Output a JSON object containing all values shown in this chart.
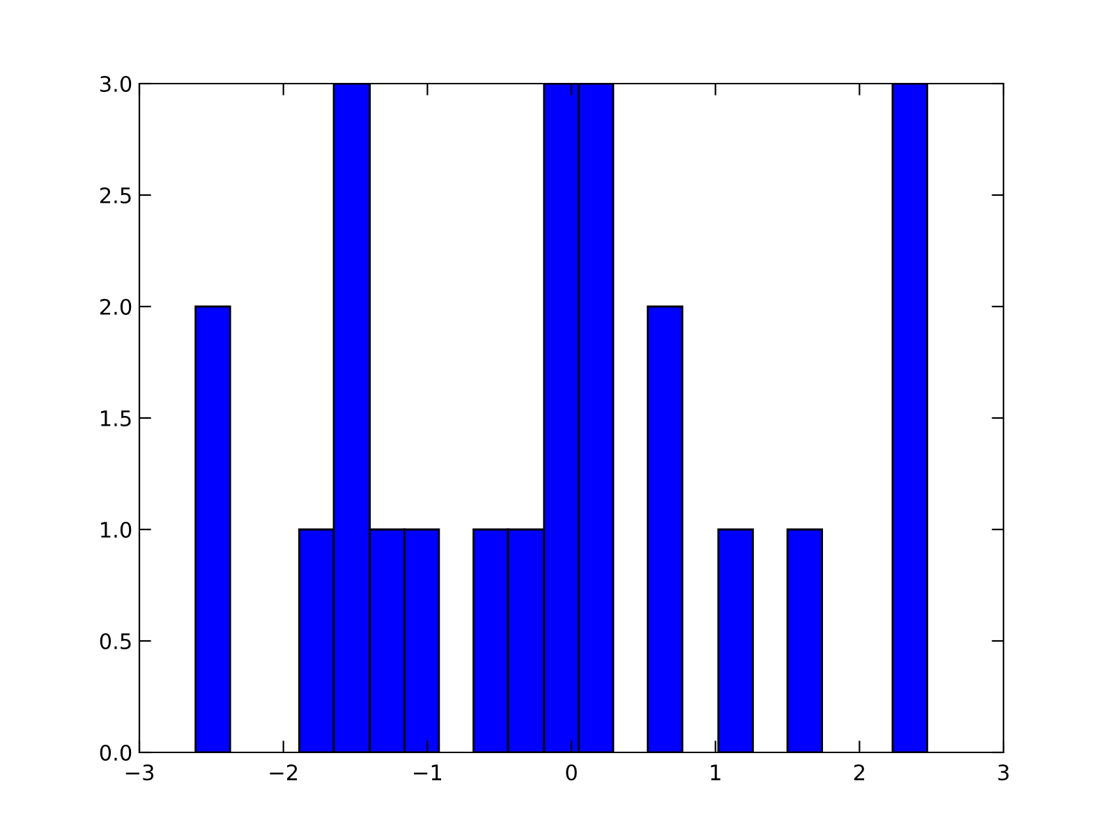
{
  "chart_data": {
    "type": "histogram",
    "bins": [
      -2.61,
      -2.37,
      -1.89,
      -1.65,
      -1.4,
      -1.16,
      -0.92,
      -0.68,
      -0.44,
      -0.19,
      0.05,
      0.29,
      0.53,
      0.77,
      1.02,
      1.26,
      1.5,
      1.74,
      2.23,
      2.47
    ],
    "values": [
      2,
      0,
      1,
      3,
      1,
      1,
      0,
      1,
      1,
      3,
      3,
      0,
      2,
      0,
      1,
      0,
      1,
      0,
      3
    ],
    "color": "#0000ff",
    "xlim": [
      -3,
      3
    ],
    "xticks": [
      {
        "value": -3,
        "label": "−3"
      },
      {
        "value": -2,
        "label": "−2"
      },
      {
        "value": -1,
        "label": "−1"
      },
      0,
      1,
      2,
      3
    ],
    "ylim": [
      0,
      3
    ],
    "yticks": [
      {
        "value": 0,
        "label": "0.0"
      },
      {
        "value": 0.5,
        "label": "0.5"
      },
      {
        "value": 1,
        "label": "1.0"
      },
      {
        "value": 1.5,
        "label": "1.5"
      },
      {
        "value": 2,
        "label": "2.0"
      },
      {
        "value": 2.5,
        "label": "2.5"
      },
      {
        "value": 3,
        "label": "3.0"
      }
    ],
    "grid": false
  }
}
